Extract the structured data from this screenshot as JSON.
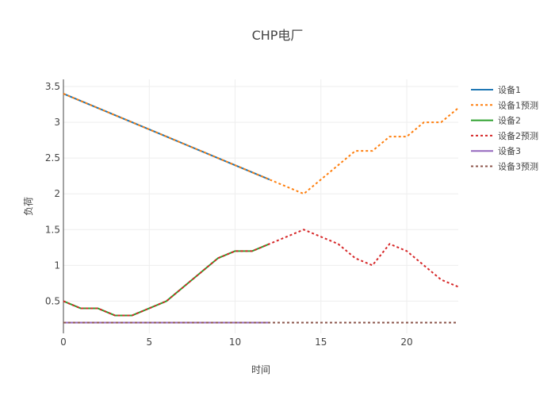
{
  "chart_data": {
    "type": "line",
    "title": "CHP电厂",
    "xlabel": "时间",
    "ylabel": "负荷",
    "xlim": [
      0,
      23
    ],
    "ylim": [
      0.05,
      3.6
    ],
    "x_ticks": [
      0,
      5,
      10,
      15,
      20
    ],
    "y_ticks": [
      0.5,
      1,
      1.5,
      2,
      2.5,
      3,
      3.5
    ],
    "grid": true,
    "legend_position": "right",
    "series": [
      {
        "name": "设备1",
        "color": "#1f77b4",
        "dash": "solid",
        "x": [
          0,
          1,
          2,
          3,
          4,
          5,
          6,
          7,
          8,
          9,
          10,
          11,
          12
        ],
        "y": [
          3.4,
          3.3,
          3.2,
          3.1,
          3.0,
          2.9,
          2.8,
          2.7,
          2.6,
          2.5,
          2.4,
          2.3,
          2.2
        ]
      },
      {
        "name": "设备1预测",
        "color": "#ff7f0e",
        "dash": "dot",
        "x": [
          0,
          1,
          2,
          3,
          4,
          5,
          6,
          7,
          8,
          9,
          10,
          11,
          12,
          13,
          14,
          15,
          16,
          17,
          18,
          19,
          20,
          21,
          22,
          23
        ],
        "y": [
          3.4,
          3.3,
          3.2,
          3.1,
          3.0,
          2.9,
          2.8,
          2.7,
          2.6,
          2.5,
          2.4,
          2.3,
          2.2,
          2.1,
          2.0,
          2.2,
          2.4,
          2.6,
          2.6,
          2.8,
          2.8,
          3.0,
          3.0,
          3.2
        ]
      },
      {
        "name": "设备2",
        "color": "#2ca02c",
        "dash": "solid",
        "x": [
          0,
          1,
          2,
          3,
          4,
          5,
          6,
          7,
          8,
          9,
          10,
          11,
          12
        ],
        "y": [
          0.5,
          0.4,
          0.4,
          0.3,
          0.3,
          0.4,
          0.5,
          0.7,
          0.9,
          1.1,
          1.2,
          1.2,
          1.3
        ]
      },
      {
        "name": "设备2预测",
        "color": "#d62728",
        "dash": "dot",
        "x": [
          0,
          1,
          2,
          3,
          4,
          5,
          6,
          7,
          8,
          9,
          10,
          11,
          12,
          13,
          14,
          15,
          16,
          17,
          18,
          19,
          20,
          21,
          22,
          23
        ],
        "y": [
          0.5,
          0.4,
          0.4,
          0.3,
          0.3,
          0.4,
          0.5,
          0.7,
          0.9,
          1.1,
          1.2,
          1.2,
          1.3,
          1.4,
          1.5,
          1.4,
          1.3,
          1.1,
          1.0,
          1.3,
          1.2,
          1.0,
          0.8,
          0.7
        ]
      },
      {
        "name": "设备3",
        "color": "#9467bd",
        "dash": "solid",
        "x": [
          0,
          12
        ],
        "y": [
          0.2,
          0.2
        ]
      },
      {
        "name": "设备3预测",
        "color": "#8c564b",
        "dash": "dot",
        "x": [
          0,
          23
        ],
        "y": [
          0.2,
          0.2
        ]
      }
    ]
  }
}
